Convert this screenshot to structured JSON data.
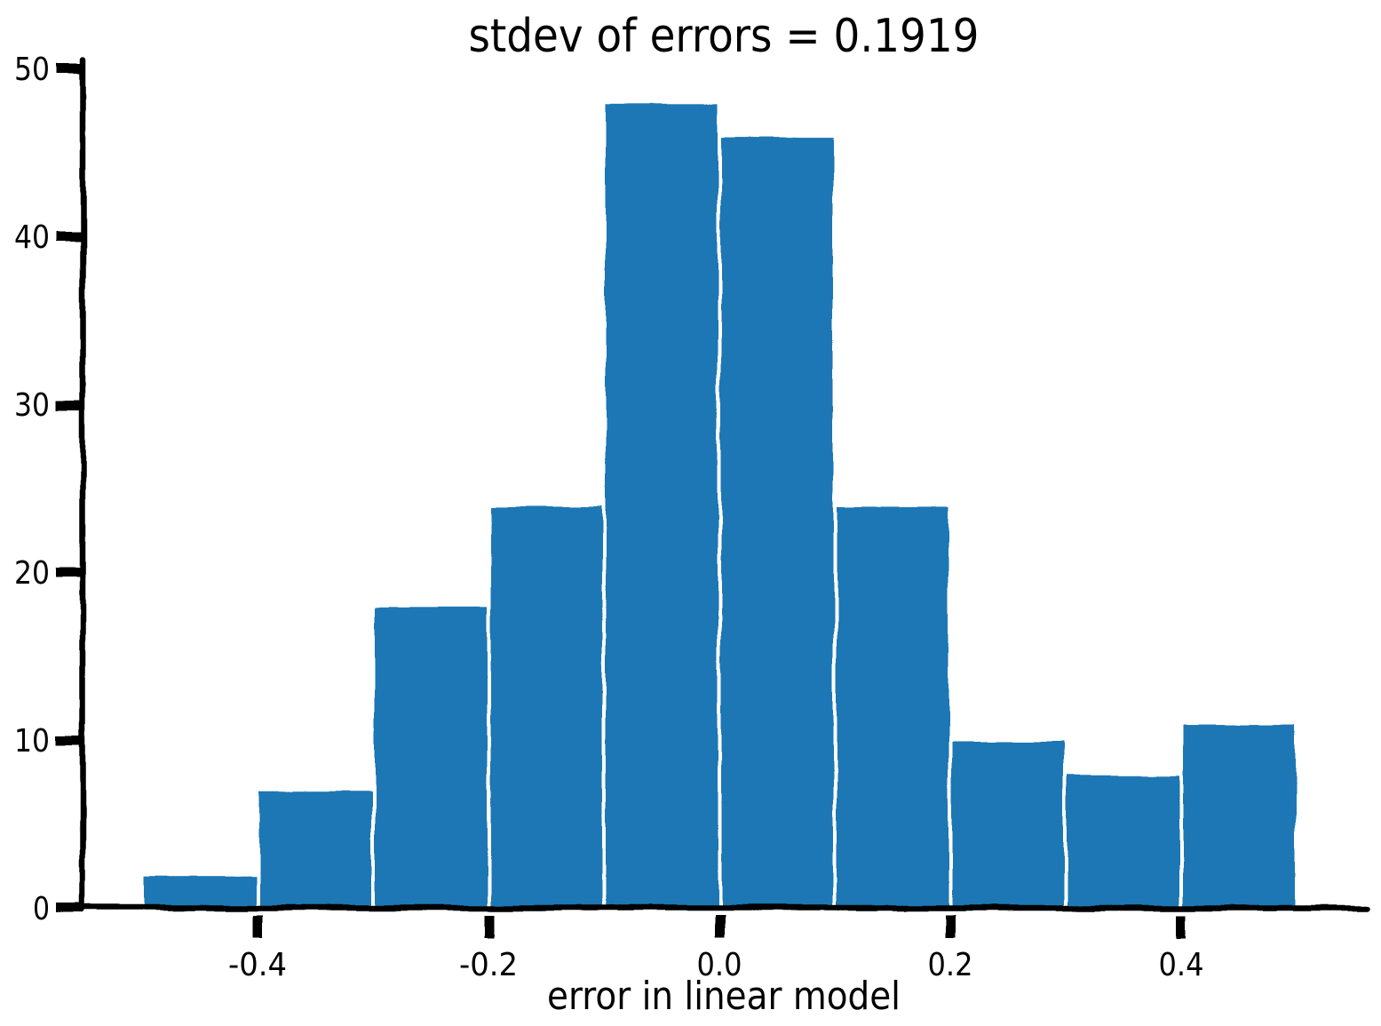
{
  "chart_data": {
    "type": "histogram",
    "title": "stdev of errors = 0.1919",
    "xlabel": "error in linear model",
    "ylabel": "",
    "bin_edges": [
      -0.5,
      -0.4,
      -0.3,
      -0.2,
      -0.1,
      0.0,
      0.1,
      0.2,
      0.3,
      0.4,
      0.5
    ],
    "counts": [
      2,
      7,
      18,
      24,
      48,
      46,
      24,
      10,
      8,
      11
    ],
    "xlim": [
      -0.55,
      0.56
    ],
    "ylim": [
      0,
      50
    ],
    "xticks": [
      -0.4,
      -0.2,
      0.0,
      0.2,
      0.4
    ],
    "xtick_labels": [
      "-0.4",
      "-0.2",
      "0.0",
      "0.2",
      "0.4"
    ],
    "yticks": [
      0,
      10,
      20,
      30,
      40,
      50
    ],
    "ytick_labels": [
      "0",
      "10",
      "20",
      "30",
      "40",
      "50"
    ],
    "bar_color": "#1f77b4",
    "bar_edge_color": "#ffffff",
    "axis_color": "#000000",
    "background_color": "#ffffff",
    "grid": false,
    "legend": null,
    "style": "xkcd-hand-drawn"
  }
}
